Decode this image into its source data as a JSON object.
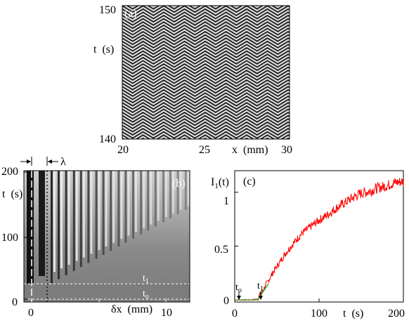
{
  "figure": {
    "panels": [
      {
        "id": "a",
        "label": "(a)",
        "xaxis": {
          "label": "x  (mm)",
          "ticks": [
            "20",
            "25",
            "30"
          ],
          "range": [
            20,
            30
          ]
        },
        "yaxis": {
          "label": "t  (s)",
          "ticks": [
            "140",
            "150"
          ],
          "range": [
            140,
            150
          ]
        },
        "pattern": "zigzag"
      },
      {
        "id": "b",
        "label": "(b)",
        "xaxis": {
          "label": "δx  (mm)",
          "ticks": [
            "0",
            "10"
          ]
        },
        "yaxis": {
          "label": "t  (s)",
          "ticks": [
            "0",
            "100",
            "200"
          ],
          "range": [
            0,
            200
          ]
        },
        "annotations": {
          "lambda": "λ",
          "t1": "t",
          "t1_sub": "1",
          "t0": "t",
          "t0_sub": "o"
        }
      },
      {
        "id": "c",
        "label": "(c)",
        "xaxis": {
          "label": "t  (s)",
          "ticks": [
            "0",
            "100",
            "200"
          ],
          "range": [
            0,
            200
          ]
        },
        "yaxis": {
          "label": "I",
          "label_sub": "1",
          "label_tail": "(t)",
          "ticks": [
            "0",
            "0.5",
            "1"
          ],
          "range": [
            0,
            1.2
          ]
        },
        "annotations": {
          "t0": "t",
          "t0_sub": "o",
          "t1": "t",
          "t1_sub": "1"
        }
      }
    ]
  },
  "chart_data": [
    {
      "type": "line",
      "panel": "(c)",
      "xlabel": "t  (s)",
      "ylabel": "I1(t)",
      "xlim": [
        0,
        200
      ],
      "ylim": [
        0,
        1.2
      ],
      "series": [
        {
          "name": "",
          "color": "#ff0000",
          "x": [
            0,
            10,
            20,
            27,
            30,
            35,
            40,
            45,
            50,
            60,
            70,
            80,
            90,
            100,
            110,
            120,
            130,
            140,
            150,
            160,
            170,
            180,
            190,
            200
          ],
          "y": [
            0.0,
            0.0,
            0.0,
            0.01,
            0.05,
            0.11,
            0.18,
            0.25,
            0.31,
            0.43,
            0.53,
            0.62,
            0.68,
            0.74,
            0.79,
            0.85,
            0.9,
            0.95,
            0.99,
            1.01,
            1.04,
            1.06,
            1.09,
            1.1
          ]
        },
        {
          "name": "",
          "color": "#33aa33",
          "x": [
            27,
            40
          ],
          "y": [
            0.0,
            0.15
          ]
        }
      ]
    }
  ],
  "colors": {
    "curve": "#ff0000",
    "fit": "#33aa33",
    "marker": "#ffffff"
  }
}
